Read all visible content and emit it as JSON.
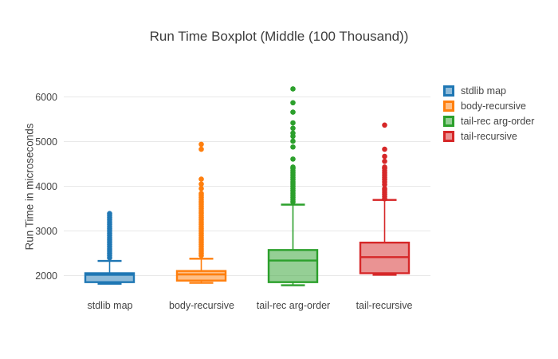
{
  "chart_data": {
    "type": "box",
    "title": "Run Time Boxplot (Middle (100 Thousand))",
    "xlabel": "",
    "ylabel": "Run Time in microseconds",
    "categories": [
      "stdlib map",
      "body-recursive",
      "tail-rec arg-order",
      "tail-recursive"
    ],
    "yticks": [
      2000,
      3000,
      4000,
      5000,
      6000
    ],
    "ylim": [
      1635,
      6420
    ],
    "grid": true,
    "grid_color": "#e8e8e8",
    "text_color": "#444444",
    "background_color": "#ffffff",
    "legend_position": "right",
    "series": [
      {
        "name": "stdlib map",
        "color": "#1f77b4",
        "lowerfence": 1820,
        "q1": 1855,
        "median": 2020,
        "q3": 2055,
        "upperfence": 2330,
        "outliers": [
          2400,
          2450,
          2500,
          2550,
          2600,
          2650,
          2700,
          2750,
          2800,
          2850,
          2900,
          2950,
          3000,
          3050,
          3100,
          3150,
          3200,
          3250,
          3300,
          3350,
          3390
        ]
      },
      {
        "name": "body-recursive",
        "color": "#ff7f0e",
        "lowerfence": 1840,
        "q1": 1890,
        "median": 2030,
        "q3": 2105,
        "upperfence": 2380,
        "outliers": [
          2450,
          2500,
          2550,
          2600,
          2650,
          2700,
          2750,
          2800,
          2850,
          2900,
          2950,
          3000,
          3050,
          3100,
          3150,
          3200,
          3250,
          3300,
          3350,
          3400,
          3450,
          3500,
          3550,
          3600,
          3650,
          3700,
          3750,
          3800,
          3840,
          3950,
          4050,
          4160,
          4830,
          4940
        ]
      },
      {
        "name": "tail-rec arg-order",
        "color": "#2ca02c",
        "lowerfence": 1785,
        "q1": 1855,
        "median": 2340,
        "q3": 2575,
        "upperfence": 3590,
        "outliers": [
          3650,
          3700,
          3750,
          3800,
          3850,
          3900,
          3950,
          4000,
          4050,
          4100,
          4150,
          4200,
          4250,
          4300,
          4350,
          4400,
          4430,
          4610,
          4880,
          5010,
          5120,
          5190,
          5300,
          5420,
          5660,
          5870,
          6180
        ]
      },
      {
        "name": "tail-recursive",
        "color": "#d62728",
        "lowerfence": 2020,
        "q1": 2055,
        "median": 2415,
        "q3": 2740,
        "upperfence": 3695,
        "outliers": [
          3720,
          3770,
          3820,
          3870,
          3920,
          3950,
          4040,
          4100,
          4150,
          4200,
          4250,
          4300,
          4350,
          4400,
          4430,
          4560,
          4670,
          4830,
          5370
        ]
      }
    ]
  }
}
